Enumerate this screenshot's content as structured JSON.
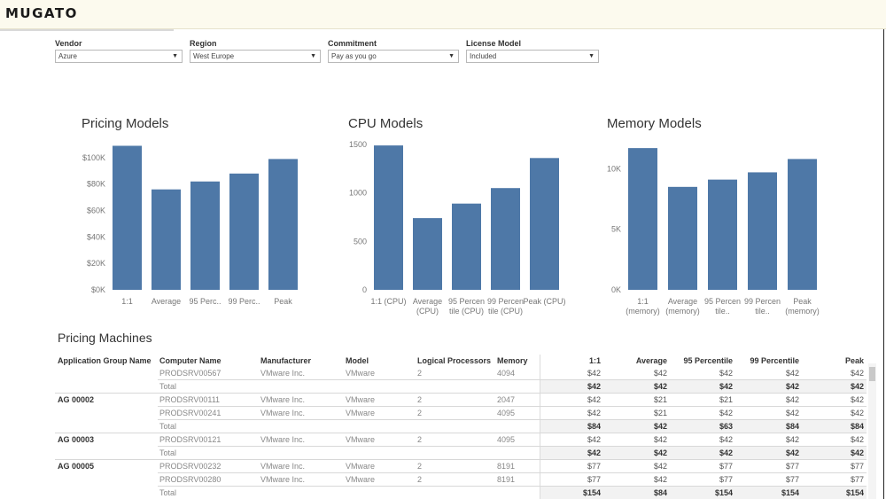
{
  "app": {
    "logo": "MUGATO"
  },
  "filters": [
    {
      "label": "Vendor",
      "value": "Azure"
    },
    {
      "label": "Region",
      "value": "West Europe"
    },
    {
      "label": "Commitment",
      "value": "Pay as you go"
    },
    {
      "label": "License Model",
      "value": "Included"
    }
  ],
  "chart_data": [
    {
      "type": "bar",
      "title": "Pricing Models",
      "categories": [
        "1:1",
        "Average",
        "95 Perc..",
        "99 Perc..",
        "Peak"
      ],
      "values": [
        109000,
        76000,
        82000,
        88000,
        99000
      ],
      "ylim": [
        0,
        110000
      ],
      "yticks": [
        {
          "value": 0,
          "label": "$0K"
        },
        {
          "value": 20000,
          "label": "$20K"
        },
        {
          "value": 40000,
          "label": "$40K"
        },
        {
          "value": 60000,
          "label": "$60K"
        },
        {
          "value": 80000,
          "label": "$80K"
        },
        {
          "value": 100000,
          "label": "$100K"
        }
      ],
      "grid": false,
      "color": "#4e78a7"
    },
    {
      "type": "bar",
      "title": "CPU Models",
      "categories": [
        "1:1 (CPU)",
        "Average (CPU)",
        "95 Percen tile (CPU)",
        "99 Percen tile (CPU)",
        "Peak (CPU)"
      ],
      "values": [
        1490,
        740,
        890,
        1050,
        1360
      ],
      "ylim": [
        0,
        1500
      ],
      "yticks": [
        {
          "value": 0,
          "label": "0"
        },
        {
          "value": 500,
          "label": "500"
        },
        {
          "value": 1000,
          "label": "1000"
        },
        {
          "value": 1500,
          "label": "1500"
        }
      ],
      "grid": false,
      "color": "#4e78a7"
    },
    {
      "type": "bar",
      "title": "Memory Models",
      "categories": [
        "1:1 (memory)",
        "Average (memory)",
        "95 Percen tile..",
        "99 Percen tile..",
        "Peak (memory)"
      ],
      "values": [
        11700,
        8500,
        9100,
        9700,
        10800
      ],
      "ylim": [
        0,
        12000
      ],
      "yticks": [
        {
          "value": 0,
          "label": "0K"
        },
        {
          "value": 5000,
          "label": "5K"
        },
        {
          "value": 10000,
          "label": "10K"
        }
      ],
      "grid": false,
      "color": "#4e78a7"
    }
  ],
  "table": {
    "title": "Pricing Machines",
    "columns": [
      "Application Group Name",
      "Computer Name",
      "Manufacturer",
      "Model",
      "Logical Processors",
      "Memory",
      "1:1",
      "Average",
      "95 Percentile",
      "99 Percentile",
      "Peak"
    ],
    "rows": [
      {
        "group": "",
        "computer": "PRODSRV00567",
        "manufacturer": "VMware Inc.",
        "model": "VMware",
        "lp": "2",
        "memory": "4094",
        "v1": "$42",
        "avg": "$42",
        "p95": "$42",
        "p99": "$42",
        "peak": "$42",
        "total": false
      },
      {
        "group": "",
        "computer": "Total",
        "manufacturer": "",
        "model": "",
        "lp": "",
        "memory": "",
        "v1": "$42",
        "avg": "$42",
        "p95": "$42",
        "p99": "$42",
        "peak": "$42",
        "total": true
      },
      {
        "group": "AG 00002",
        "computer": "PRODSRV00111",
        "manufacturer": "VMware Inc.",
        "model": "VMware",
        "lp": "2",
        "memory": "2047",
        "v1": "$42",
        "avg": "$21",
        "p95": "$21",
        "p99": "$42",
        "peak": "$42",
        "total": false
      },
      {
        "group": "",
        "computer": "PRODSRV00241",
        "manufacturer": "VMware Inc.",
        "model": "VMware",
        "lp": "2",
        "memory": "4095",
        "v1": "$42",
        "avg": "$21",
        "p95": "$42",
        "p99": "$42",
        "peak": "$42",
        "total": false
      },
      {
        "group": "",
        "computer": "Total",
        "manufacturer": "",
        "model": "",
        "lp": "",
        "memory": "",
        "v1": "$84",
        "avg": "$42",
        "p95": "$63",
        "p99": "$84",
        "peak": "$84",
        "total": true
      },
      {
        "group": "AG 00003",
        "computer": "PRODSRV00121",
        "manufacturer": "VMware Inc.",
        "model": "VMware",
        "lp": "2",
        "memory": "4095",
        "v1": "$42",
        "avg": "$42",
        "p95": "$42",
        "p99": "$42",
        "peak": "$42",
        "total": false
      },
      {
        "group": "",
        "computer": "Total",
        "manufacturer": "",
        "model": "",
        "lp": "",
        "memory": "",
        "v1": "$42",
        "avg": "$42",
        "p95": "$42",
        "p99": "$42",
        "peak": "$42",
        "total": true
      },
      {
        "group": "AG 00005",
        "computer": "PRODSRV00232",
        "manufacturer": "VMware Inc.",
        "model": "VMware",
        "lp": "2",
        "memory": "8191",
        "v1": "$77",
        "avg": "$42",
        "p95": "$77",
        "p99": "$77",
        "peak": "$77",
        "total": false
      },
      {
        "group": "",
        "computer": "PRODSRV00280",
        "manufacturer": "VMware Inc.",
        "model": "VMware",
        "lp": "2",
        "memory": "8191",
        "v1": "$77",
        "avg": "$42",
        "p95": "$77",
        "p99": "$77",
        "peak": "$77",
        "total": false
      },
      {
        "group": "",
        "computer": "Total",
        "manufacturer": "",
        "model": "",
        "lp": "",
        "memory": "",
        "v1": "$154",
        "avg": "$84",
        "p95": "$154",
        "p99": "$154",
        "peak": "$154",
        "total": true
      }
    ]
  }
}
